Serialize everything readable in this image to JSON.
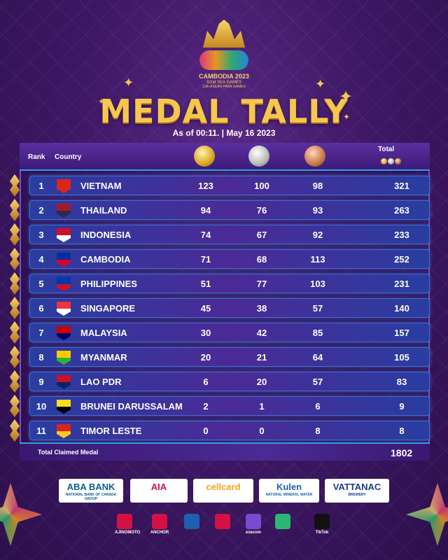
{
  "event": {
    "logo_line1": "CAMBODIA 2023",
    "logo_line2": "32nd SEA GAMES",
    "logo_line3": "12th ASEAN PARA GAMES"
  },
  "title": "MEDAL TALLY",
  "subtitle": "As of 00:11. | May 16 2023",
  "header": {
    "rank": "Rank",
    "country": "Country",
    "total": "Total"
  },
  "rows": [
    {
      "rank": "1",
      "country": "VIETNAM",
      "gold": "123",
      "silver": "100",
      "bronze": "98",
      "total": "321",
      "flag_colors": [
        "#da251d",
        "#da251d"
      ]
    },
    {
      "rank": "2",
      "country": "THAILAND",
      "gold": "94",
      "silver": "76",
      "bronze": "93",
      "total": "263",
      "flag_colors": [
        "#a51931",
        "#2d2a4a"
      ]
    },
    {
      "rank": "3",
      "country": "INDONESIA",
      "gold": "74",
      "silver": "67",
      "bronze": "92",
      "total": "233",
      "flag_colors": [
        "#ce1126",
        "#ffffff"
      ]
    },
    {
      "rank": "4",
      "country": "CAMBODIA",
      "gold": "71",
      "silver": "68",
      "bronze": "113",
      "total": "252",
      "flag_colors": [
        "#032ea1",
        "#e00025"
      ]
    },
    {
      "rank": "5",
      "country": "PHILIPPINES",
      "gold": "51",
      "silver": "77",
      "bronze": "103",
      "total": "231",
      "flag_colors": [
        "#0038a8",
        "#ce1126"
      ]
    },
    {
      "rank": "6",
      "country": "SINGAPORE",
      "gold": "45",
      "silver": "38",
      "bronze": "57",
      "total": "140",
      "flag_colors": [
        "#ef3340",
        "#ffffff"
      ]
    },
    {
      "rank": "7",
      "country": "MALAYSIA",
      "gold": "30",
      "silver": "42",
      "bronze": "85",
      "total": "157",
      "flag_colors": [
        "#cc0001",
        "#010066"
      ]
    },
    {
      "rank": "8",
      "country": "MYANMAR",
      "gold": "20",
      "silver": "21",
      "bronze": "64",
      "total": "105",
      "flag_colors": [
        "#fecb00",
        "#34b233"
      ]
    },
    {
      "rank": "9",
      "country": "LAO PDR",
      "gold": "6",
      "silver": "20",
      "bronze": "57",
      "total": "83",
      "flag_colors": [
        "#ce1126",
        "#002868"
      ]
    },
    {
      "rank": "10",
      "country": "BRUNEI DARUSSALAM",
      "gold": "2",
      "silver": "1",
      "bronze": "6",
      "total": "9",
      "flag_colors": [
        "#f7e017",
        "#000000"
      ]
    },
    {
      "rank": "11",
      "country": "TIMOR LESTE",
      "gold": "0",
      "silver": "0",
      "bronze": "8",
      "total": "8",
      "flag_colors": [
        "#dc241f",
        "#ffc726"
      ]
    }
  ],
  "total_label": "Total Claimed Medal",
  "total_value": "1802",
  "sponsors_main": [
    {
      "name": "ABA BANK",
      "sub": "NATIONAL BANK OF CANADA GROUP",
      "color": "#0b5e8a"
    },
    {
      "name": "AIA",
      "sub": "",
      "color": "#d31145"
    },
    {
      "name": "cellcard",
      "sub": "",
      "color": "#f7a21b"
    },
    {
      "name": "Kulen",
      "sub": "NATURAL MINERAL WATER",
      "color": "#1f5fb0"
    },
    {
      "name": "VATTANAC",
      "sub": "BREWERY",
      "color": "#1b3c8a"
    }
  ],
  "sponsors_minor": [
    {
      "name": "AJINOMOTO",
      "color": "#d31145"
    },
    {
      "name": "ANCHOR",
      "color": "#d31145"
    },
    {
      "name": "",
      "color": "#1f5fb0"
    },
    {
      "name": "",
      "color": "#d31145"
    },
    {
      "name": "ezecom",
      "color": "#7a4bd0"
    },
    {
      "name": "",
      "color": "#2bb673"
    },
    {
      "name": "TikTok",
      "color": "#111111"
    }
  ],
  "colors": {
    "accent_gold": "#f5c74e",
    "row_border": "#3e6fd4",
    "background": "#3f1866"
  }
}
